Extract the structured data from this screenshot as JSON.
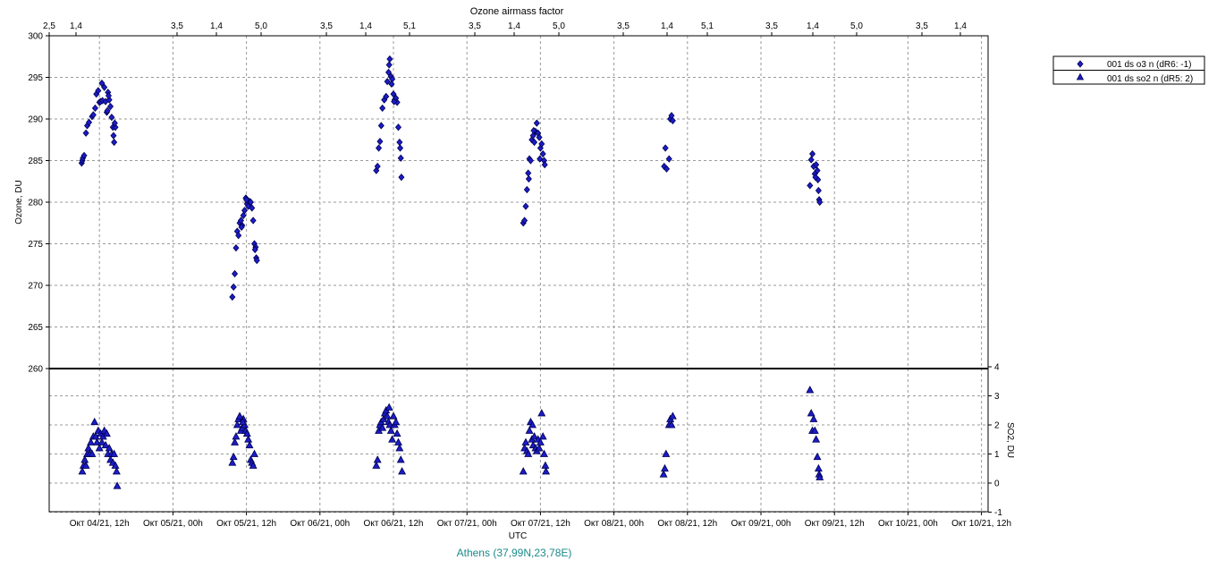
{
  "chart_data": [
    {
      "type": "scatter",
      "panel": "ozone",
      "title": "Ozone airmass factor",
      "top_tick_labels": [
        "2,5",
        "1,4",
        "3,5",
        "1,4",
        "5,0",
        "3,5",
        "1,4",
        "5,1",
        "3,5",
        "1,4",
        "5,0",
        "3,5",
        "1,4",
        "5,1",
        "3,5",
        "1,4",
        "5,0",
        "3,5",
        "1,4"
      ],
      "ylabel": "Ozone, DU",
      "ylim": [
        260,
        300
      ],
      "yticks": [
        260,
        265,
        270,
        275,
        280,
        285,
        290,
        295,
        300
      ],
      "xlabel": "UTC",
      "x_tick_labels": [
        "Окт 04/21, 12h",
        "Окт 05/21, 00h",
        "Окт 05/21, 12h",
        "Окт 06/21, 00h",
        "Окт 06/21, 12h",
        "Окт 07/21, 00h",
        "Окт 07/21, 12h",
        "Окт 08/21, 00h",
        "Окт 08/21, 12h",
        "Окт 09/21, 00h",
        "Окт 09/21, 12h",
        "Окт 10/21, 00h",
        "Окт 10/21, 12h"
      ],
      "x_unit": "hours since Окт 04/21, 00h",
      "grid": true,
      "series": [
        {
          "name": "001 ds o3  n (dR6: -1)",
          "marker": "diamond",
          "color": "#1c1cc8",
          "points": [
            [
              9.1,
              284.7
            ],
            [
              9.2,
              285.0
            ],
            [
              9.3,
              285.3
            ],
            [
              9.5,
              285.6
            ],
            [
              9.8,
              288.3
            ],
            [
              10.0,
              289.2
            ],
            [
              10.3,
              289.6
            ],
            [
              10.8,
              290.3
            ],
            [
              11.0,
              290.5
            ],
            [
              11.3,
              291.3
            ],
            [
              11.5,
              293.0
            ],
            [
              11.8,
              293.4
            ],
            [
              12.0,
              292.0
            ],
            [
              12.2,
              292.1
            ],
            [
              12.4,
              294.3
            ],
            [
              12.5,
              292.2
            ],
            [
              12.8,
              293.8
            ],
            [
              13.0,
              292.1
            ],
            [
              13.2,
              290.8
            ],
            [
              13.4,
              293.2
            ],
            [
              13.6,
              292.3
            ],
            [
              13.8,
              291.5
            ],
            [
              14.0,
              290.2
            ],
            [
              14.2,
              289.0
            ],
            [
              14.3,
              288.0
            ],
            [
              14.4,
              287.2
            ],
            [
              14.6,
              289.0
            ],
            [
              14.5,
              289.5
            ],
            [
              13.5,
              292.8
            ],
            [
              13.3,
              291.0
            ],
            [
              33.7,
              268.6
            ],
            [
              33.9,
              269.8
            ],
            [
              34.1,
              271.4
            ],
            [
              34.3,
              274.5
            ],
            [
              34.5,
              276.5
            ],
            [
              34.7,
              276.0
            ],
            [
              34.9,
              277.5
            ],
            [
              35.1,
              277.8
            ],
            [
              35.3,
              277.2
            ],
            [
              35.5,
              278.4
            ],
            [
              35.7,
              279.0
            ],
            [
              35.9,
              280.5
            ],
            [
              36.1,
              279.8
            ],
            [
              36.3,
              279.5
            ],
            [
              36.5,
              280.1
            ],
            [
              36.7,
              280.0
            ],
            [
              36.9,
              279.3
            ],
            [
              37.1,
              277.8
            ],
            [
              37.3,
              275.0
            ],
            [
              37.5,
              274.6
            ],
            [
              37.6,
              273.3
            ],
            [
              37.7,
              273.0
            ],
            [
              37.4,
              274.3
            ],
            [
              36.0,
              280.3
            ],
            [
              35.2,
              277.0
            ],
            [
              57.2,
              283.8
            ],
            [
              57.4,
              284.3
            ],
            [
              57.6,
              286.5
            ],
            [
              57.8,
              287.3
            ],
            [
              58.0,
              289.2
            ],
            [
              58.2,
              291.3
            ],
            [
              58.5,
              292.3
            ],
            [
              58.8,
              292.7
            ],
            [
              59.0,
              294.5
            ],
            [
              59.2,
              295.6
            ],
            [
              59.4,
              297.2
            ],
            [
              59.6,
              295.1
            ],
            [
              59.8,
              294.8
            ],
            [
              60.0,
              293.0
            ],
            [
              60.2,
              292.3
            ],
            [
              60.4,
              292.5
            ],
            [
              60.6,
              292.0
            ],
            [
              60.8,
              289.0
            ],
            [
              61.0,
              287.2
            ],
            [
              61.1,
              286.5
            ],
            [
              61.2,
              285.3
            ],
            [
              61.3,
              283.0
            ],
            [
              59.3,
              296.5
            ],
            [
              59.7,
              294.2
            ],
            [
              60.1,
              292.1
            ],
            [
              81.2,
              277.5
            ],
            [
              81.4,
              277.8
            ],
            [
              81.6,
              279.5
            ],
            [
              81.8,
              281.5
            ],
            [
              82.0,
              283.5
            ],
            [
              82.2,
              285.2
            ],
            [
              82.4,
              285.0
            ],
            [
              82.6,
              287.5
            ],
            [
              82.8,
              288.0
            ],
            [
              83.0,
              287.2
            ],
            [
              83.2,
              288.5
            ],
            [
              83.4,
              289.5
            ],
            [
              83.6,
              288.3
            ],
            [
              83.8,
              287.8
            ],
            [
              84.0,
              286.5
            ],
            [
              84.2,
              287.0
            ],
            [
              84.4,
              285.8
            ],
            [
              84.6,
              285.0
            ],
            [
              84.7,
              284.5
            ],
            [
              83.9,
              285.2
            ],
            [
              82.1,
              282.8
            ],
            [
              82.9,
              288.6
            ],
            [
              104.2,
              284.3
            ],
            [
              104.4,
              286.5
            ],
            [
              104.6,
              284.0
            ],
            [
              105.0,
              285.2
            ],
            [
              105.2,
              290.0
            ],
            [
              105.4,
              290.4
            ],
            [
              105.6,
              289.8
            ],
            [
              128.0,
              282.0
            ],
            [
              128.2,
              285.1
            ],
            [
              128.4,
              285.8
            ],
            [
              128.6,
              284.3
            ],
            [
              128.8,
              283.4
            ],
            [
              129.0,
              284.5
            ],
            [
              129.2,
              283.8
            ],
            [
              129.3,
              282.7
            ],
            [
              129.4,
              281.4
            ],
            [
              129.5,
              280.3
            ],
            [
              129.6,
              280.0
            ],
            [
              128.9,
              283.0
            ]
          ]
        }
      ]
    },
    {
      "type": "scatter",
      "panel": "so2",
      "ylabel": "SO2, DU",
      "ylim": [
        -1,
        4
      ],
      "yticks": [
        -1,
        0,
        1,
        2,
        3,
        4
      ],
      "grid": true,
      "series": [
        {
          "name": "001 ds so2 n (dR5: 2)",
          "marker": "triangle",
          "color": "#1c1cc8",
          "points": [
            [
              9.2,
              0.4
            ],
            [
              9.4,
              0.6
            ],
            [
              9.6,
              0.8
            ],
            [
              9.8,
              0.6
            ],
            [
              10.0,
              1.0
            ],
            [
              10.2,
              1.2
            ],
            [
              10.4,
              1.0
            ],
            [
              10.6,
              1.4
            ],
            [
              10.8,
              1.0
            ],
            [
              11.0,
              1.6
            ],
            [
              11.2,
              2.1
            ],
            [
              11.4,
              1.6
            ],
            [
              11.6,
              1.4
            ],
            [
              11.8,
              1.8
            ],
            [
              12.0,
              1.2
            ],
            [
              12.2,
              1.7
            ],
            [
              12.4,
              1.4
            ],
            [
              12.6,
              1.6
            ],
            [
              12.8,
              1.8
            ],
            [
              13.0,
              1.3
            ],
            [
              13.2,
              1.7
            ],
            [
              13.4,
              1.0
            ],
            [
              13.6,
              1.2
            ],
            [
              13.8,
              0.8
            ],
            [
              14.0,
              1.0
            ],
            [
              14.2,
              0.7
            ],
            [
              14.4,
              1.0
            ],
            [
              14.6,
              0.6
            ],
            [
              14.8,
              0.4
            ],
            [
              14.9,
              -0.1
            ],
            [
              33.7,
              0.7
            ],
            [
              33.9,
              0.9
            ],
            [
              34.1,
              1.4
            ],
            [
              34.3,
              1.6
            ],
            [
              34.5,
              2.0
            ],
            [
              34.7,
              2.2
            ],
            [
              34.9,
              2.3
            ],
            [
              35.1,
              1.8
            ],
            [
              35.3,
              1.9
            ],
            [
              35.5,
              2.2
            ],
            [
              35.7,
              2.0
            ],
            [
              35.9,
              1.8
            ],
            [
              36.1,
              1.7
            ],
            [
              36.3,
              1.5
            ],
            [
              36.5,
              1.3
            ],
            [
              36.7,
              0.8
            ],
            [
              36.9,
              0.7
            ],
            [
              37.1,
              0.6
            ],
            [
              37.3,
              1.0
            ],
            [
              35.4,
              2.1
            ],
            [
              57.2,
              0.6
            ],
            [
              57.4,
              0.8
            ],
            [
              57.6,
              1.8
            ],
            [
              57.8,
              2.0
            ],
            [
              58.0,
              2.1
            ],
            [
              58.2,
              1.9
            ],
            [
              58.4,
              2.2
            ],
            [
              58.6,
              2.4
            ],
            [
              58.8,
              2.5
            ],
            [
              59.0,
              2.3
            ],
            [
              59.2,
              2.1
            ],
            [
              59.4,
              2.0
            ],
            [
              59.6,
              1.8
            ],
            [
              59.8,
              1.5
            ],
            [
              60.0,
              2.3
            ],
            [
              60.2,
              2.0
            ],
            [
              60.4,
              2.1
            ],
            [
              60.6,
              1.7
            ],
            [
              60.8,
              1.4
            ],
            [
              61.0,
              1.2
            ],
            [
              61.2,
              0.8
            ],
            [
              61.4,
              0.4
            ],
            [
              59.3,
              2.6
            ],
            [
              81.2,
              0.4
            ],
            [
              81.4,
              1.2
            ],
            [
              81.6,
              1.4
            ],
            [
              81.8,
              1.1
            ],
            [
              82.0,
              1.0
            ],
            [
              82.2,
              1.8
            ],
            [
              82.4,
              2.1
            ],
            [
              82.6,
              1.5
            ],
            [
              82.8,
              1.3
            ],
            [
              83.0,
              1.6
            ],
            [
              83.2,
              1.2
            ],
            [
              83.4,
              1.1
            ],
            [
              83.6,
              1.5
            ],
            [
              83.8,
              1.2
            ],
            [
              84.0,
              1.4
            ],
            [
              84.2,
              2.4
            ],
            [
              84.4,
              1.6
            ],
            [
              84.6,
              1.0
            ],
            [
              84.8,
              0.6
            ],
            [
              84.9,
              0.4
            ],
            [
              82.7,
              2.0
            ],
            [
              104.1,
              0.3
            ],
            [
              104.3,
              0.5
            ],
            [
              104.5,
              1.0
            ],
            [
              105.0,
              2.0
            ],
            [
              105.2,
              2.2
            ],
            [
              105.4,
              2.0
            ],
            [
              105.6,
              2.3
            ],
            [
              128.0,
              3.2
            ],
            [
              128.2,
              2.4
            ],
            [
              128.4,
              1.8
            ],
            [
              128.6,
              2.2
            ],
            [
              128.8,
              1.8
            ],
            [
              129.0,
              1.5
            ],
            [
              129.2,
              0.9
            ],
            [
              129.4,
              0.5
            ],
            [
              129.5,
              0.3
            ],
            [
              129.6,
              0.2
            ]
          ]
        }
      ]
    }
  ],
  "station_label": "Athens (37,99N,23,78E)"
}
